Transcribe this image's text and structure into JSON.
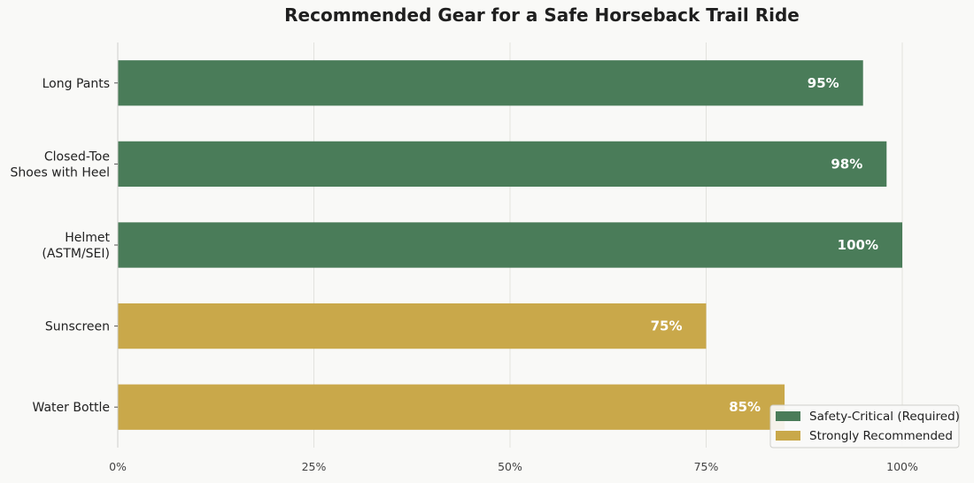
{
  "chart_data": {
    "type": "bar",
    "orientation": "horizontal",
    "title": "Recommended Gear for a Safe Horseback Trail Ride",
    "xlabel": "",
    "ylabel": "",
    "xlim": [
      0,
      100
    ],
    "x_ticks": [
      "0%",
      "25%",
      "50%",
      "75%",
      "100%"
    ],
    "x_tick_values": [
      0,
      25,
      50,
      75,
      100
    ],
    "grid": true,
    "legend_position": "bottom-right",
    "categories": [
      [
        "Long Pants"
      ],
      [
        "Closed-Toe",
        "Shoes with Heel"
      ],
      [
        "Helmet",
        "(ASTM/SEI)"
      ],
      [
        "Sunscreen"
      ],
      [
        "Water Bottle"
      ]
    ],
    "values": [
      95,
      98,
      100,
      75,
      85
    ],
    "value_labels": [
      "95%",
      "98%",
      "100%",
      "75%",
      "85%"
    ],
    "groups": [
      "Safety-Critical (Required)",
      "Safety-Critical (Required)",
      "Safety-Critical (Required)",
      "Strongly Recommended",
      "Strongly Recommended"
    ],
    "legend": [
      {
        "name": "Safety-Critical (Required)",
        "color": "#4a7c59"
      },
      {
        "name": "Strongly Recommended",
        "color": "#c9a84a"
      }
    ]
  }
}
